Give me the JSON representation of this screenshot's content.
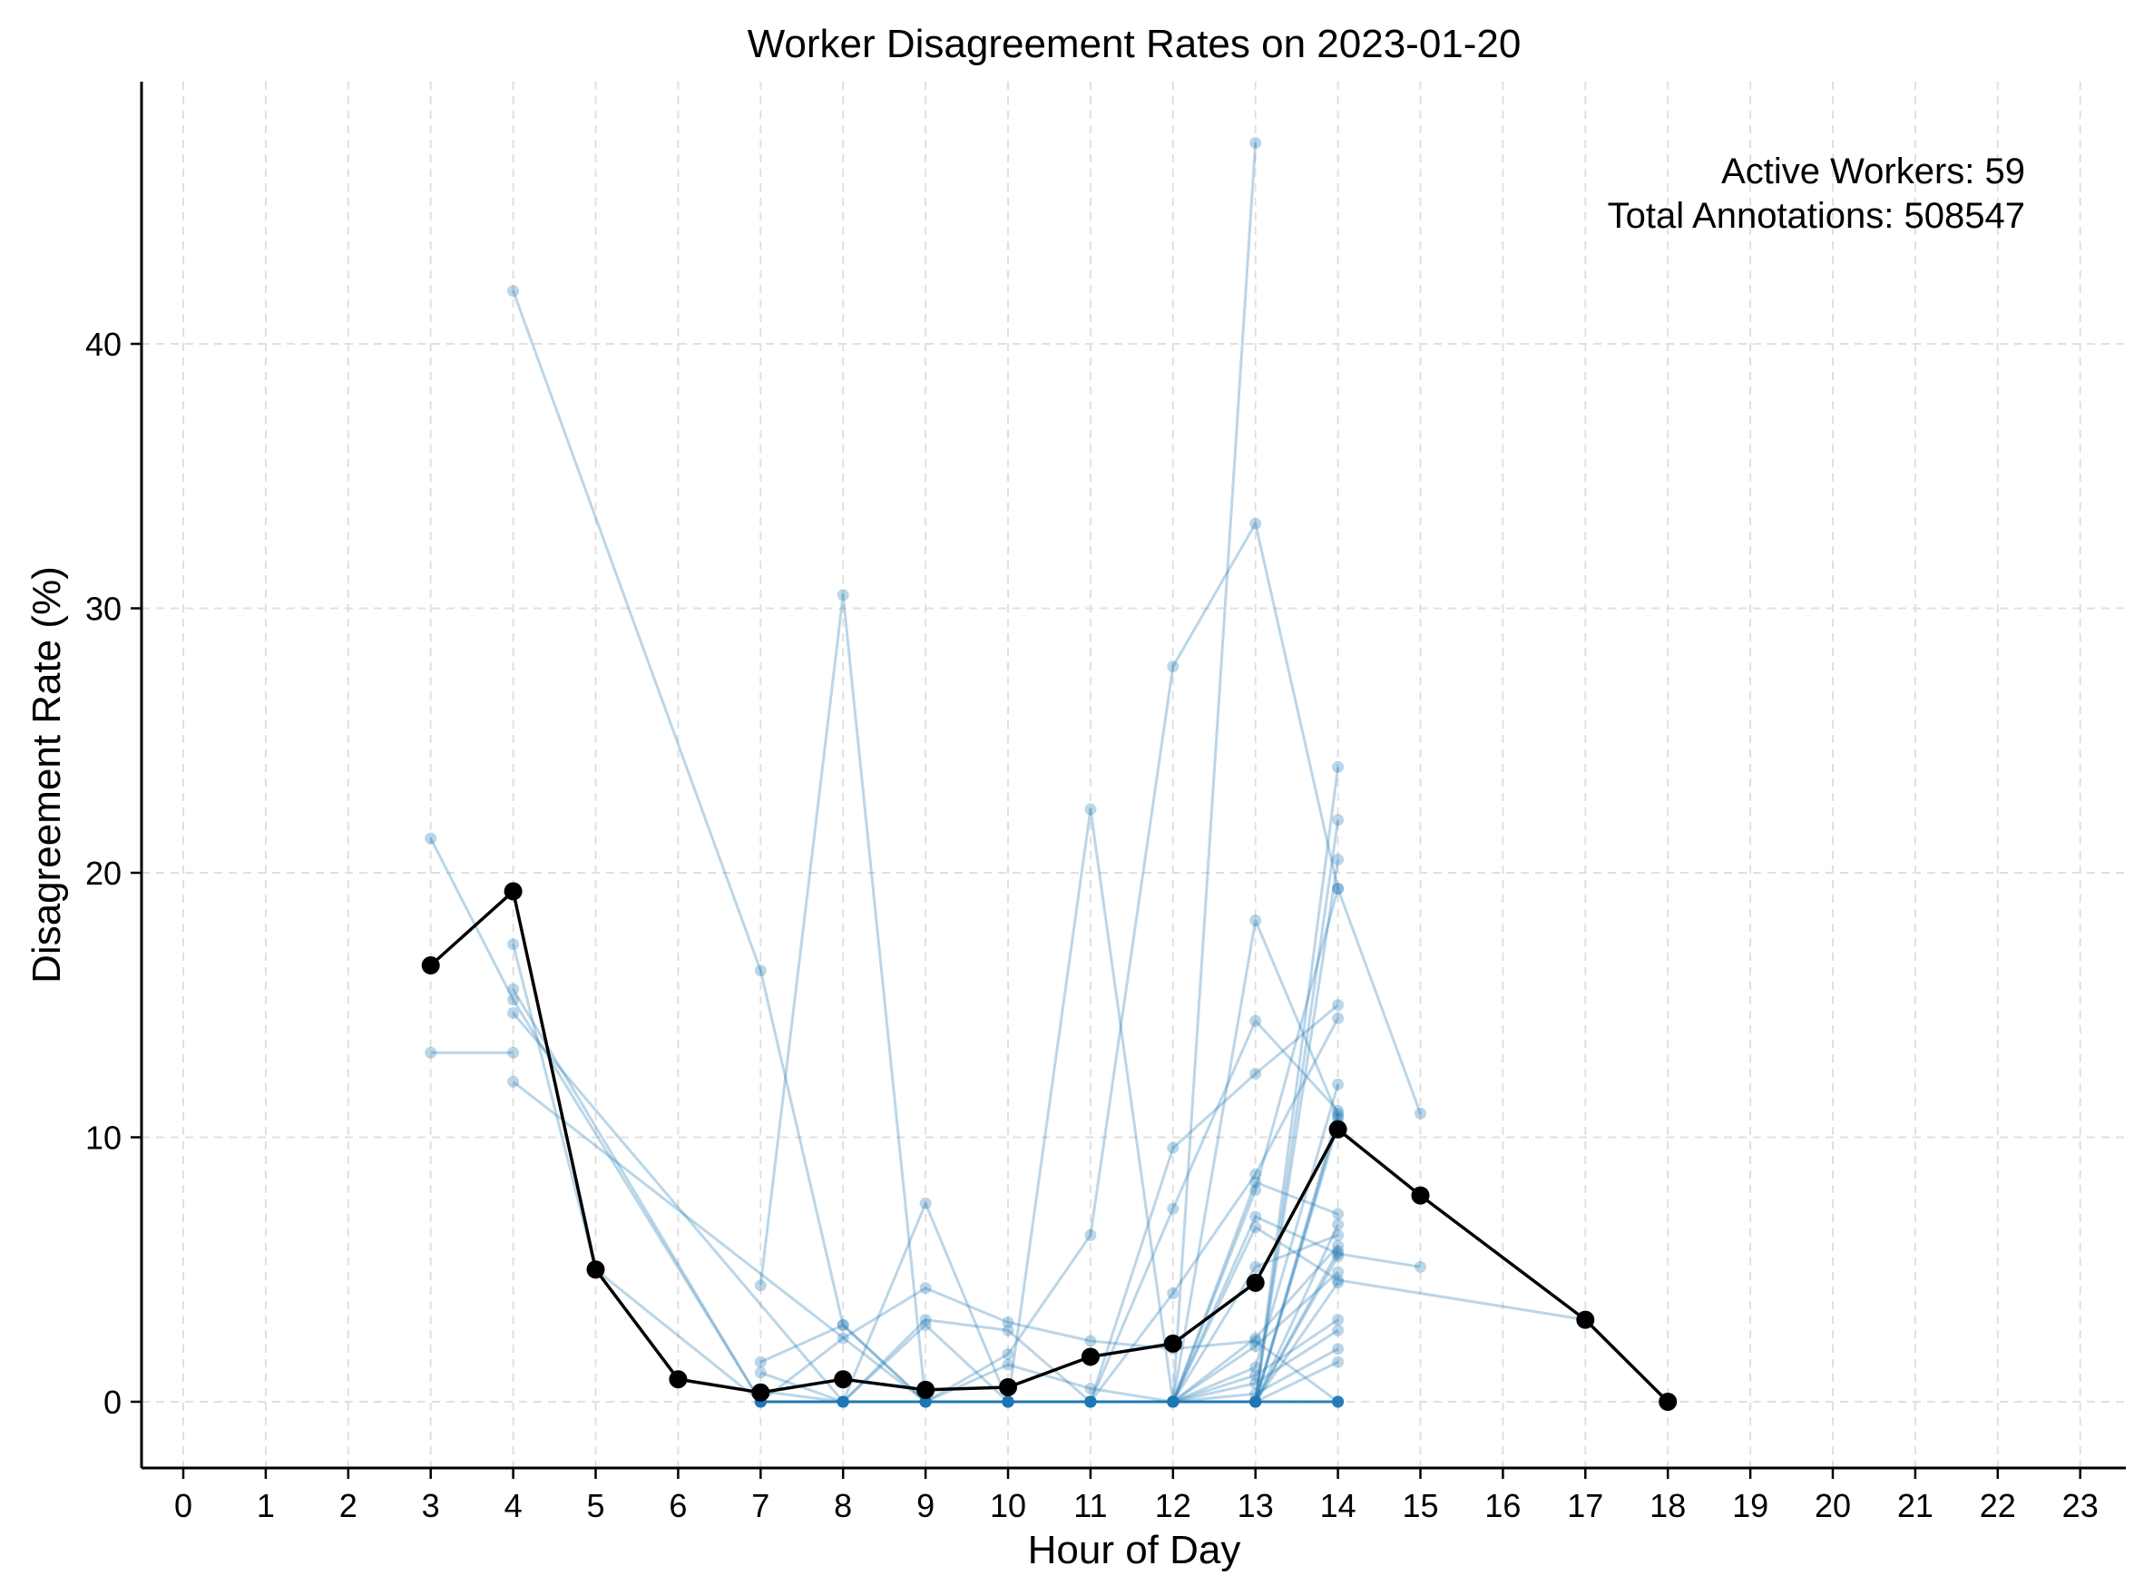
{
  "chart_data": {
    "type": "line",
    "title": "Worker Disagreement Rates on 2023-01-20",
    "xlabel": "Hour of Day",
    "ylabel": "Disagreement Rate (%)",
    "xlim": [
      -0.5,
      23.5
    ],
    "ylim": [
      -2.4,
      49.8
    ],
    "x_ticks": [
      "0",
      "1",
      "2",
      "3",
      "4",
      "5",
      "6",
      "7",
      "8",
      "9",
      "10",
      "11",
      "12",
      "13",
      "14",
      "15",
      "16",
      "17",
      "18",
      "19",
      "20",
      "21",
      "22",
      "23"
    ],
    "y_ticks": [
      "0",
      "10",
      "20",
      "30",
      "40"
    ],
    "grid": true,
    "annotations": {
      "active_workers": "Active Workers: 59",
      "total_annotations": "Total Annotations: 508547"
    },
    "colors": {
      "workers": "#1f77b4",
      "mean": "#000000",
      "grid": "#e0e0e0"
    },
    "mean_series": {
      "x": [
        3,
        4,
        5,
        6,
        7,
        8,
        9,
        10,
        11,
        12,
        13,
        14,
        15,
        17,
        18
      ],
      "y": [
        16.5,
        19.3,
        5.0,
        0.85,
        0.35,
        0.85,
        0.45,
        0.55,
        1.7,
        2.2,
        4.5,
        10.3,
        7.8,
        3.1,
        0.0
      ]
    },
    "worker_series": [
      {
        "x": [
          3,
          4,
          7,
          8,
          9
        ],
        "y": [
          21.3,
          15.2,
          0.0,
          0.0,
          0.0
        ]
      },
      {
        "x": [
          3,
          4
        ],
        "y": [
          13.2,
          13.2
        ]
      },
      {
        "x": [
          4,
          7,
          8,
          9,
          10,
          11,
          12,
          13,
          14
        ],
        "y": [
          42.0,
          16.3,
          2.9,
          0.0,
          0.0,
          0.0,
          0.0,
          0.0,
          24.0
        ]
      },
      {
        "x": [
          4,
          5,
          7,
          8,
          9,
          10,
          11,
          12,
          13,
          14
        ],
        "y": [
          17.3,
          5.0,
          0.0,
          0.0,
          0.0,
          0.0,
          0.0,
          0.0,
          0.0,
          10.5
        ]
      },
      {
        "x": [
          4,
          7,
          8,
          9,
          10,
          11,
          12,
          13
        ],
        "y": [
          15.6,
          0.0,
          0.0,
          0.0,
          0.0,
          0.0,
          0.0,
          0.0
        ]
      },
      {
        "x": [
          4,
          8,
          9,
          10,
          11,
          12,
          13,
          14
        ],
        "y": [
          14.7,
          0.0,
          0.0,
          0.0,
          0.0,
          0.0,
          0.0,
          0.0
        ]
      },
      {
        "x": [
          4,
          9,
          10,
          11,
          12,
          13,
          14
        ],
        "y": [
          12.1,
          0.0,
          0.0,
          0.0,
          0.0,
          0.0,
          0.0
        ]
      },
      {
        "x": [
          7,
          8,
          9,
          10,
          11,
          12,
          13,
          14
        ],
        "y": [
          4.4,
          30.5,
          0.0,
          0.0,
          0.0,
          0.0,
          0.0,
          5.5
        ]
      },
      {
        "x": [
          7,
          8,
          9,
          10,
          11,
          12,
          13,
          14
        ],
        "y": [
          1.5,
          2.9,
          0.0,
          0.0,
          0.0,
          0.0,
          0.0,
          0.0
        ]
      },
      {
        "x": [
          7,
          8,
          9,
          10,
          11,
          12,
          13,
          14
        ],
        "y": [
          1.1,
          0.0,
          0.0,
          0.0,
          0.0,
          0.0,
          0.0,
          0.0
        ]
      },
      {
        "x": [
          7,
          8,
          9,
          10,
          11,
          12,
          13,
          14
        ],
        "y": [
          0.4,
          0.0,
          0.0,
          0.0,
          0.0,
          0.0,
          0.0,
          0.0
        ]
      },
      {
        "x": [
          7,
          8,
          9,
          10,
          11,
          12,
          13,
          14
        ],
        "y": [
          0.0,
          2.4,
          4.3,
          3.0,
          2.3,
          2.0,
          2.3,
          0.0
        ]
      },
      {
        "x": [
          7,
          8,
          9,
          10,
          11,
          12,
          13,
          14
        ],
        "y": [
          0.0,
          0.0,
          7.5,
          0.0,
          0.0,
          0.0,
          0.0,
          0.0
        ]
      },
      {
        "x": [
          7,
          8,
          9,
          10,
          11,
          12,
          13,
          14
        ],
        "y": [
          0.0,
          0.0,
          3.1,
          2.7,
          0.0,
          0.0,
          0.0,
          22.0
        ]
      },
      {
        "x": [
          7,
          8,
          9,
          10,
          11,
          12,
          13,
          14
        ],
        "y": [
          0.0,
          0.0,
          2.9,
          0.0,
          22.4,
          0.0,
          0.0,
          20.5
        ]
      },
      {
        "x": [
          7,
          8,
          9,
          10,
          11,
          12,
          13,
          14
        ],
        "y": [
          0.0,
          0.0,
          0.0,
          1.8,
          6.3,
          27.8,
          33.2,
          19.4
        ]
      },
      {
        "x": [
          7,
          8,
          9,
          10,
          11,
          12,
          13
        ],
        "y": [
          0.0,
          0.0,
          0.0,
          1.4,
          0.5,
          0.0,
          47.6
        ]
      },
      {
        "x": [
          7,
          8,
          9,
          10,
          11,
          12,
          13,
          14
        ],
        "y": [
          0.0,
          0.0,
          0.0,
          0.0,
          0.0,
          9.6,
          12.4,
          15.0
        ]
      },
      {
        "x": [
          7,
          8,
          9,
          10,
          11,
          12,
          13,
          14
        ],
        "y": [
          0.0,
          0.0,
          0.0,
          0.0,
          0.0,
          7.3,
          14.4,
          11.0
        ]
      },
      {
        "x": [
          7,
          8,
          9,
          10,
          11,
          12,
          13,
          14
        ],
        "y": [
          0.0,
          0.0,
          0.0,
          0.0,
          0.0,
          4.1,
          8.6,
          14.5
        ]
      },
      {
        "x": [
          9,
          10,
          11,
          12,
          13,
          14
        ],
        "y": [
          0.0,
          0.0,
          0.0,
          0.0,
          18.2,
          10.8
        ]
      },
      {
        "x": [
          9,
          10,
          11,
          12,
          13,
          14
        ],
        "y": [
          0.0,
          0.0,
          0.0,
          0.0,
          8.3,
          7.1
        ]
      },
      {
        "x": [
          9,
          10,
          11,
          12,
          13,
          14,
          15
        ],
        "y": [
          0.0,
          0.0,
          0.0,
          0.0,
          8.0,
          19.4,
          10.9
        ]
      },
      {
        "x": [
          9,
          10,
          11,
          12,
          13,
          14,
          15
        ],
        "y": [
          0.0,
          0.0,
          0.0,
          0.0,
          7.0,
          5.6,
          5.1
        ]
      },
      {
        "x": [
          9,
          10,
          11,
          12,
          13,
          14,
          17
        ],
        "y": [
          0.0,
          0.0,
          0.0,
          0.0,
          6.6,
          4.6,
          3.1
        ]
      },
      {
        "x": [
          10,
          11,
          12,
          13,
          14
        ],
        "y": [
          0.0,
          0.0,
          0.0,
          5.1,
          6.3
        ]
      },
      {
        "x": [
          10,
          11,
          12,
          13,
          14
        ],
        "y": [
          0.0,
          0.0,
          0.0,
          2.4,
          5.9
        ]
      },
      {
        "x": [
          10,
          11,
          12,
          13,
          14
        ],
        "y": [
          0.0,
          0.0,
          0.0,
          2.1,
          4.9
        ]
      },
      {
        "x": [
          10,
          11,
          12,
          13,
          14
        ],
        "y": [
          0.0,
          0.0,
          0.0,
          1.3,
          12.0
        ]
      },
      {
        "x": [
          10,
          11,
          12,
          13,
          14
        ],
        "y": [
          0.0,
          0.0,
          0.0,
          1.0,
          3.1
        ]
      },
      {
        "x": [
          10,
          11,
          12,
          13,
          14
        ],
        "y": [
          0.0,
          0.0,
          0.0,
          0.7,
          2.7
        ]
      },
      {
        "x": [
          10,
          11,
          12,
          13,
          14
        ],
        "y": [
          0.0,
          0.0,
          0.0,
          0.3,
          2.0
        ]
      },
      {
        "x": [
          10,
          11,
          12,
          13,
          14
        ],
        "y": [
          0.0,
          0.0,
          0.0,
          0.0,
          1.5
        ]
      },
      {
        "x": [
          10,
          11,
          12,
          13,
          14
        ],
        "y": [
          0.0,
          0.0,
          0.0,
          0.0,
          10.9
        ]
      },
      {
        "x": [
          10,
          11,
          12,
          13,
          14
        ],
        "y": [
          0.0,
          0.0,
          0.0,
          0.0,
          4.5
        ]
      },
      {
        "x": [
          11,
          12,
          13,
          14
        ],
        "y": [
          0.0,
          0.0,
          0.0,
          6.7
        ]
      },
      {
        "x": [
          11,
          12,
          13,
          14
        ],
        "y": [
          0.0,
          0.0,
          0.0,
          5.7
        ]
      },
      {
        "x": [
          11,
          12,
          13,
          14
        ],
        "y": [
          0.0,
          0.0,
          0.0,
          10.7
        ]
      },
      {
        "x": [
          12,
          13,
          14
        ],
        "y": [
          0.0,
          0.0,
          0.0
        ]
      }
    ]
  }
}
